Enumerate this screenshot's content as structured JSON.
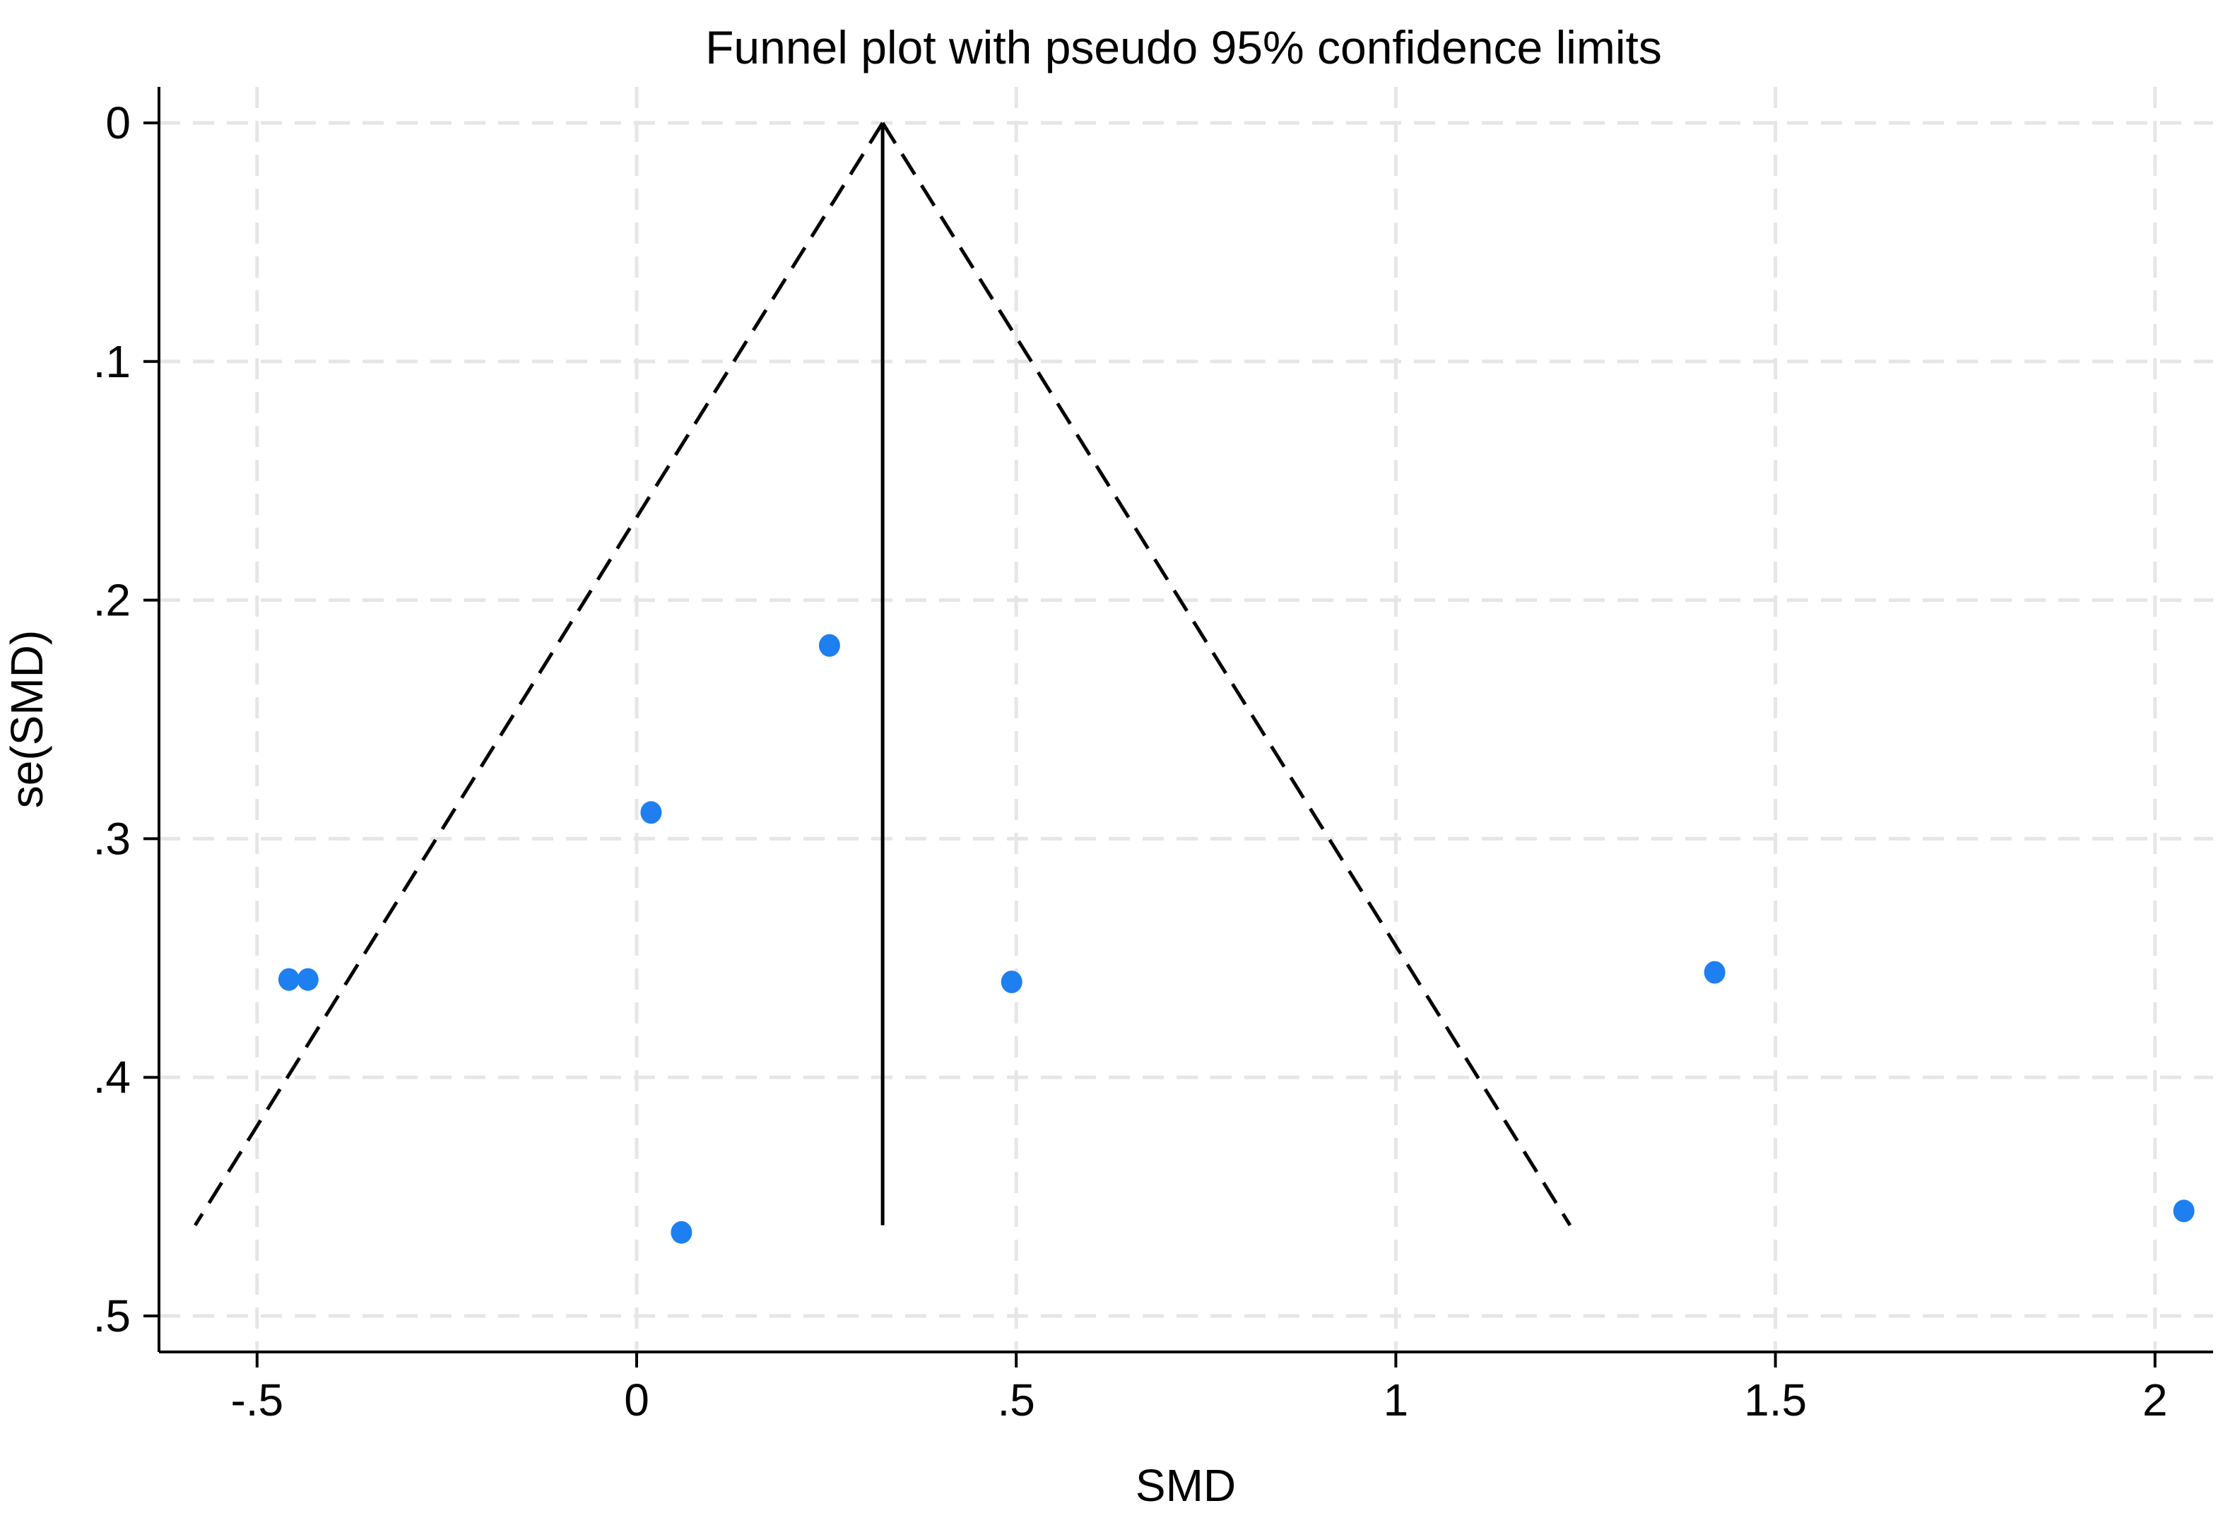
{
  "chart_data": {
    "type": "scatter",
    "title": "Funnel plot with pseudo 95% confidence limits",
    "xlabel": "SMD",
    "ylabel": "se(SMD)",
    "xlim": [
      -0.63,
      2.08
    ],
    "ylim": [
      0,
      0.515
    ],
    "y_reversed": true,
    "grid": true,
    "x_ticks": [
      -0.5,
      0,
      0.5,
      1,
      1.5,
      2
    ],
    "x_tick_labels": [
      "-.5",
      "0",
      ".5",
      "1",
      "1.5",
      "2"
    ],
    "y_ticks": [
      0,
      0.1,
      0.2,
      0.3,
      0.4,
      0.5
    ],
    "y_tick_labels": [
      "0",
      ".1",
      ".2",
      ".3",
      ".4",
      ".5"
    ],
    "points": [
      {
        "x": -0.458,
        "y": 0.359
      },
      {
        "x": -0.433,
        "y": 0.359
      },
      {
        "x": 0.254,
        "y": 0.219
      },
      {
        "x": 0.019,
        "y": 0.289
      },
      {
        "x": 0.494,
        "y": 0.36
      },
      {
        "x": 0.059,
        "y": 0.465
      },
      {
        "x": 1.42,
        "y": 0.356
      },
      {
        "x": 2.038,
        "y": 0.456
      }
    ],
    "pooled_estimate": 0.324,
    "funnel_max_se": 0.462,
    "z": 1.96,
    "colors": {
      "points": "#1e7ff0",
      "lines": "#000000",
      "grid": "#e6e6e6"
    }
  }
}
